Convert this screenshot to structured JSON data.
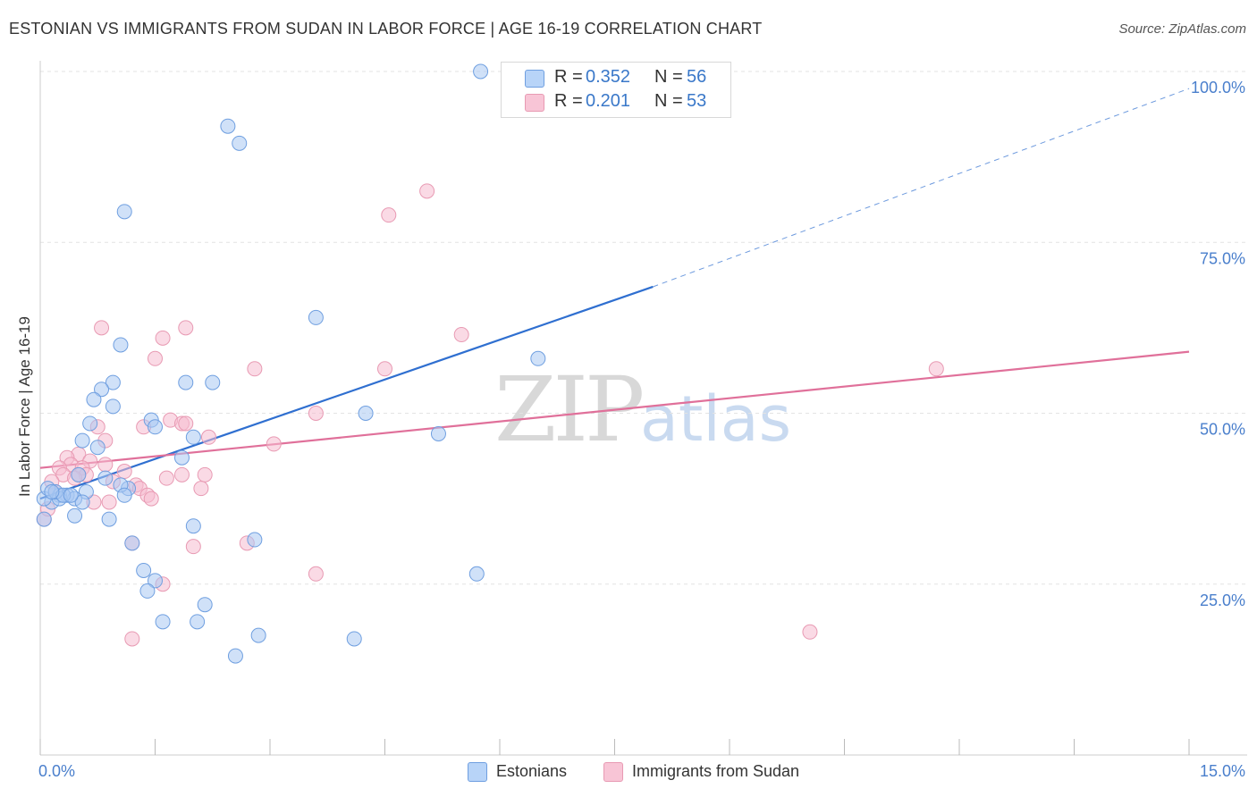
{
  "title": "ESTONIAN VS IMMIGRANTS FROM SUDAN IN LABOR FORCE | AGE 16-19 CORRELATION CHART",
  "source": "Source: ZipAtlas.com",
  "watermark": {
    "zip": "ZIP",
    "atlas": "atlas"
  },
  "legend": {
    "r_label": "R =",
    "n_label": "N =",
    "estonians": {
      "r": "0.352",
      "n": "56"
    },
    "sudan": {
      "r": "0.201",
      "n": "53"
    }
  },
  "bottom_legend": {
    "estonians": "Estonians",
    "sudan": "Immigrants from Sudan"
  },
  "colors": {
    "blue_fill": "#a9c9f2",
    "blue_stroke": "#6f9fe0",
    "blue_line": "#2f6fd0",
    "pink_fill": "#f6bcd0",
    "pink_stroke": "#e89ab3",
    "pink_line": "#e0709a",
    "tick_label": "#4a7fcc",
    "grid": "#e3e3e3"
  },
  "chart_data": {
    "type": "scatter",
    "title": "ESTONIAN VS IMMIGRANTS FROM SUDAN IN LABOR FORCE | AGE 16-19 CORRELATION CHART",
    "xlabel": "",
    "ylabel": "In Labor Force | Age 16-19",
    "xlim": [
      0,
      15
    ],
    "ylim": [
      0,
      100
    ],
    "x_tick_labels": [
      "0.0%",
      "15.0%"
    ],
    "y_ticks": [
      25,
      50,
      75,
      100
    ],
    "y_tick_labels": [
      "25.0%",
      "50.0%",
      "75.0%",
      "100.0%"
    ],
    "grid": true,
    "series": [
      {
        "name": "Estonians",
        "r": 0.352,
        "n": 56,
        "trend": {
          "x0": 0.0,
          "y0": 37.5,
          "x1": 8.0,
          "y1": 68.5,
          "dash_x1": 15.0,
          "dash_y1": 97.5
        },
        "points": [
          [
            5.75,
            100
          ],
          [
            2.45,
            92
          ],
          [
            2.6,
            89.5
          ],
          [
            1.1,
            79.5
          ],
          [
            3.6,
            64
          ],
          [
            1.05,
            60
          ],
          [
            6.5,
            58
          ],
          [
            0.95,
            54.5
          ],
          [
            1.9,
            54.5
          ],
          [
            2.25,
            54.5
          ],
          [
            0.8,
            53.5
          ],
          [
            0.7,
            52
          ],
          [
            0.95,
            51
          ],
          [
            4.25,
            50
          ],
          [
            1.45,
            49
          ],
          [
            0.65,
            48.5
          ],
          [
            1.5,
            48
          ],
          [
            5.2,
            47
          ],
          [
            2.0,
            46.5
          ],
          [
            0.55,
            46
          ],
          [
            0.75,
            45
          ],
          [
            1.85,
            43.5
          ],
          [
            0.5,
            41
          ],
          [
            0.85,
            40.5
          ],
          [
            1.15,
            39
          ],
          [
            1.05,
            39.5
          ],
          [
            0.6,
            38.5
          ],
          [
            0.35,
            38
          ],
          [
            0.25,
            38
          ],
          [
            0.45,
            37.5
          ],
          [
            0.15,
            37
          ],
          [
            0.25,
            37.5
          ],
          [
            0.55,
            37
          ],
          [
            1.1,
            38
          ],
          [
            0.05,
            37.5
          ],
          [
            0.1,
            39
          ],
          [
            0.45,
            35
          ],
          [
            0.9,
            34.5
          ],
          [
            0.05,
            34.5
          ],
          [
            2.0,
            33.5
          ],
          [
            2.8,
            31.5
          ],
          [
            1.2,
            31
          ],
          [
            1.35,
            27
          ],
          [
            1.5,
            25.5
          ],
          [
            1.4,
            24
          ],
          [
            5.7,
            26.5
          ],
          [
            2.15,
            22
          ],
          [
            1.6,
            19.5
          ],
          [
            2.05,
            19.5
          ],
          [
            2.85,
            17.5
          ],
          [
            4.1,
            17
          ],
          [
            2.55,
            14.5
          ],
          [
            0.2,
            38.5
          ],
          [
            0.3,
            38
          ],
          [
            0.15,
            38.5
          ],
          [
            0.4,
            38
          ]
        ]
      },
      {
        "name": "Immigrants from Sudan",
        "r": 0.201,
        "n": 53,
        "trend": {
          "x0": 0.0,
          "y0": 42.0,
          "x1": 15.0,
          "y1": 59.0
        },
        "points": [
          [
            5.05,
            82.5
          ],
          [
            4.55,
            79
          ],
          [
            0.8,
            62.5
          ],
          [
            1.9,
            62.5
          ],
          [
            1.6,
            61
          ],
          [
            5.5,
            61.5
          ],
          [
            1.5,
            58
          ],
          [
            2.8,
            56.5
          ],
          [
            4.5,
            56.5
          ],
          [
            11.7,
            56.5
          ],
          [
            3.6,
            50
          ],
          [
            1.7,
            49
          ],
          [
            1.85,
            48.5
          ],
          [
            1.9,
            48.5
          ],
          [
            0.75,
            48
          ],
          [
            1.35,
            48
          ],
          [
            2.2,
            46.5
          ],
          [
            0.85,
            46
          ],
          [
            3.05,
            45.5
          ],
          [
            0.5,
            44
          ],
          [
            0.35,
            43.5
          ],
          [
            0.65,
            43
          ],
          [
            0.4,
            42.5
          ],
          [
            0.85,
            42.5
          ],
          [
            0.55,
            42
          ],
          [
            0.25,
            42
          ],
          [
            0.3,
            41
          ],
          [
            0.6,
            41
          ],
          [
            1.1,
            41.5
          ],
          [
            1.85,
            41
          ],
          [
            2.15,
            41
          ],
          [
            1.65,
            40.5
          ],
          [
            0.45,
            40.5
          ],
          [
            0.15,
            40
          ],
          [
            0.95,
            40
          ],
          [
            1.25,
            39.5
          ],
          [
            1.3,
            39
          ],
          [
            2.1,
            39
          ],
          [
            1.4,
            38
          ],
          [
            1.45,
            37.5
          ],
          [
            0.9,
            37
          ],
          [
            0.7,
            37
          ],
          [
            1.2,
            31
          ],
          [
            2.0,
            30.5
          ],
          [
            2.7,
            31
          ],
          [
            1.6,
            25
          ],
          [
            3.6,
            26.5
          ],
          [
            1.2,
            17
          ],
          [
            10.05,
            18
          ],
          [
            0.05,
            34.5
          ],
          [
            0.1,
            36
          ],
          [
            0.2,
            38.5
          ],
          [
            0.5,
            41
          ]
        ]
      }
    ]
  }
}
